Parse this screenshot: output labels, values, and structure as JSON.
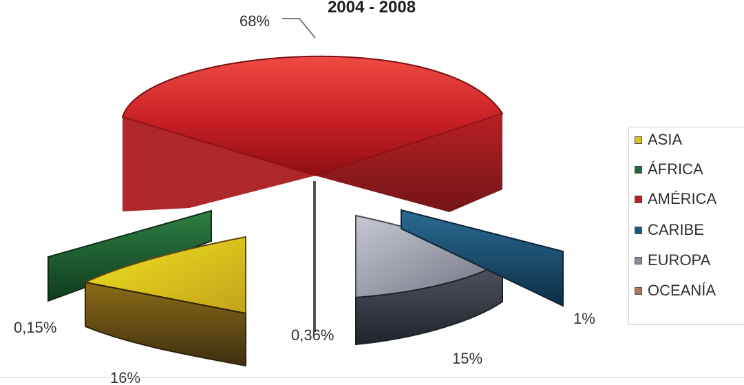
{
  "chart_data": {
    "type": "pie",
    "title": "2004 - 2008",
    "subtitle": "",
    "categories": [
      "ASIA",
      "ÁFRICA",
      "AMÉRICA",
      "CARIBE",
      "EUROPA",
      "OCEANÍA"
    ],
    "values": [
      16,
      0.15,
      68,
      1,
      15,
      0.36
    ],
    "value_labels": [
      "16%",
      "0,15%",
      "68%",
      "1%",
      "15%",
      "0,36%"
    ],
    "series": [
      {
        "values": [
          16,
          0.15,
          68,
          1,
          15,
          0.36
        ]
      }
    ],
    "colors": [
      "#d9c51f",
      "#1f6b3a",
      "#bf1e24",
      "#155b82",
      "#8a8e98",
      "#b07a59"
    ],
    "legend_placement": "right",
    "grid": false
  }
}
